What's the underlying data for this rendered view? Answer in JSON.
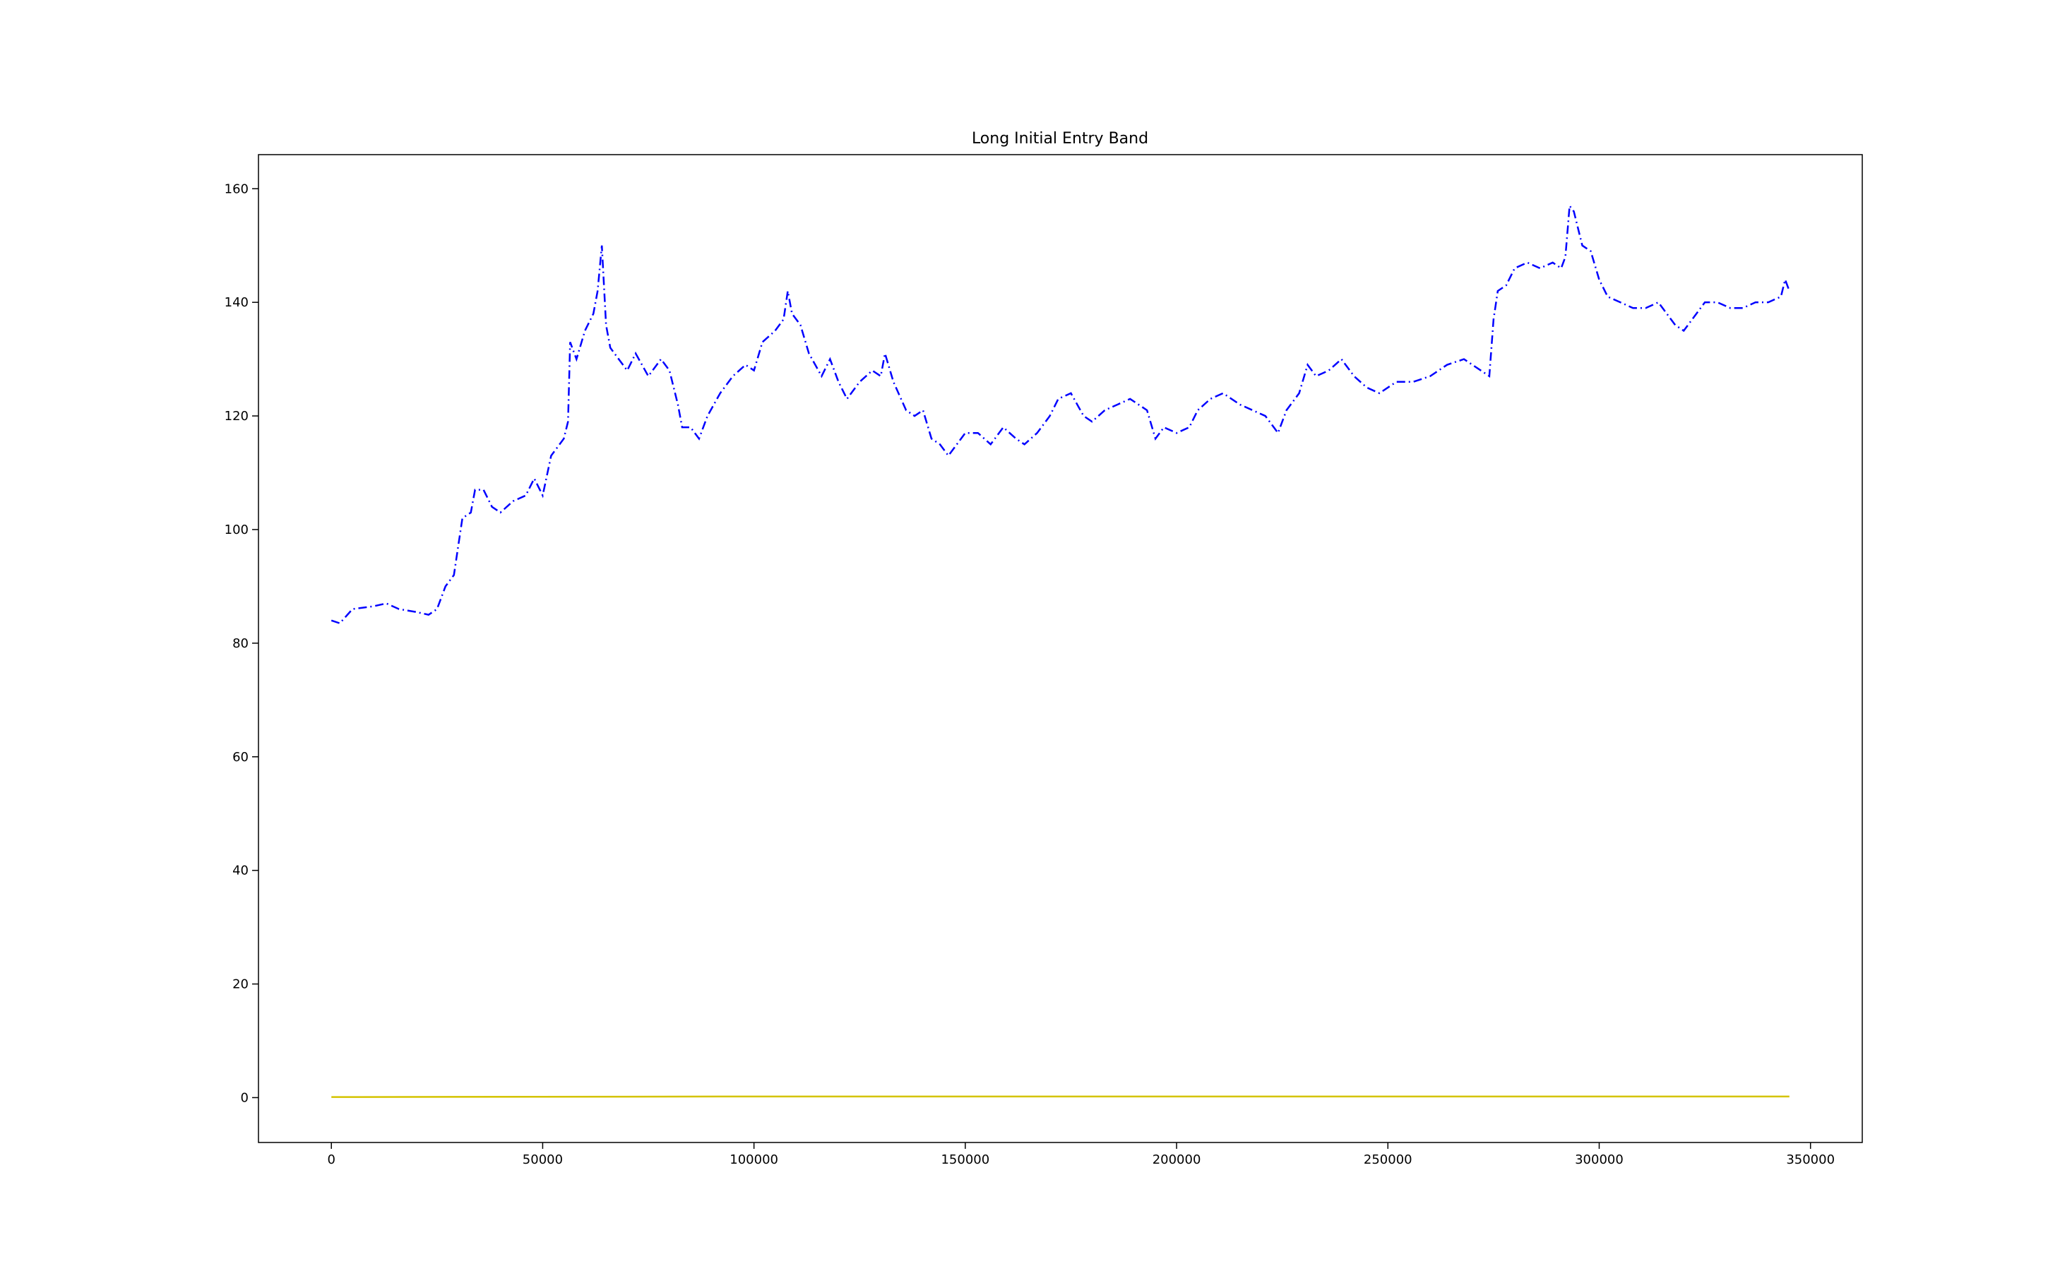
{
  "chart_data": {
    "type": "line",
    "title": "Long Initial Entry Band",
    "series": [
      {
        "color": "#0000ff",
        "linestyle": "dashdot",
        "x": [
          0,
          2000,
          5000,
          10000,
          13000,
          16000,
          20000,
          23000,
          25000,
          27000,
          29000,
          30000,
          31000,
          33000,
          34000,
          36000,
          38000,
          40000,
          43000,
          46000,
          48000,
          50000,
          52000,
          55000,
          56000,
          56500,
          58000,
          60000,
          62000,
          63000,
          64000,
          65000,
          66000,
          68000,
          70000,
          72000,
          75000,
          78000,
          80000,
          82000,
          83000,
          85000,
          87000,
          89000,
          92000,
          95000,
          98000,
          100000,
          102000,
          105000,
          107000,
          108000,
          109000,
          111000,
          113000,
          116000,
          118000,
          120000,
          122000,
          125000,
          128000,
          130000,
          131000,
          133000,
          136000,
          138000,
          140000,
          142000,
          144000,
          146000,
          148000,
          150000,
          153000,
          156000,
          159000,
          162000,
          164000,
          167000,
          170000,
          172000,
          175000,
          178000,
          180000,
          183000,
          186000,
          189000,
          193000,
          195000,
          197000,
          200000,
          203000,
          205000,
          208000,
          211000,
          215000,
          218000,
          221000,
          224000,
          226000,
          229000,
          231000,
          233000,
          236000,
          239000,
          242000,
          245000,
          248000,
          252000,
          256000,
          260000,
          264000,
          268000,
          272000,
          274000,
          275000,
          276000,
          278000,
          280000,
          283000,
          286000,
          289000,
          291000,
          292000,
          293000,
          294000,
          296000,
          298000,
          300000,
          302000,
          305000,
          308000,
          311000,
          314000,
          316000,
          318000,
          320000,
          322000,
          325000,
          328000,
          331000,
          334000,
          337000,
          340000,
          343000,
          344000,
          345000
        ],
        "values": [
          84,
          83.5,
          86,
          86.5,
          87,
          86,
          85.5,
          85,
          86,
          90,
          92,
          97,
          102,
          103,
          107,
          107,
          104,
          103,
          105,
          106,
          109,
          106,
          113,
          116,
          119,
          133,
          130,
          135,
          138,
          142,
          150,
          136,
          132,
          130,
          128,
          131,
          127,
          130,
          128,
          122,
          118,
          118,
          116,
          120,
          124,
          127,
          129,
          128,
          133,
          135,
          137,
          142,
          138,
          136,
          131,
          127,
          130,
          126,
          123,
          126,
          128,
          127,
          131,
          126,
          121,
          120,
          121,
          116,
          115,
          113,
          115,
          117,
          117,
          115,
          118,
          116,
          115,
          117,
          120,
          123,
          124,
          120,
          119,
          121,
          122,
          123,
          121,
          116,
          118,
          117,
          118,
          121,
          123,
          124,
          122,
          121,
          120,
          117,
          121,
          124,
          129,
          127,
          128,
          130,
          127,
          125,
          124,
          126,
          126,
          127,
          129,
          130,
          128,
          127,
          137,
          142,
          143,
          146,
          147,
          146,
          147,
          146,
          148,
          157,
          156,
          150,
          149,
          144,
          141,
          140,
          139,
          139,
          140,
          138,
          136,
          135,
          137,
          140,
          140,
          139,
          139,
          140,
          140,
          141,
          144,
          142
        ]
      },
      {
        "color": "#d4c300",
        "linestyle": "solid",
        "x": [
          0,
          100000,
          345000
        ],
        "values": [
          0.1,
          0.2,
          0.2
        ]
      }
    ],
    "xlim": [
      -17250,
      362250
    ],
    "xticks": [
      0,
      50000,
      100000,
      150000,
      200000,
      250000,
      300000,
      350000
    ],
    "ylim": [
      -7.9,
      166
    ],
    "yticks": [
      0,
      20,
      40,
      60,
      80,
      100,
      120,
      140,
      160
    ]
  }
}
